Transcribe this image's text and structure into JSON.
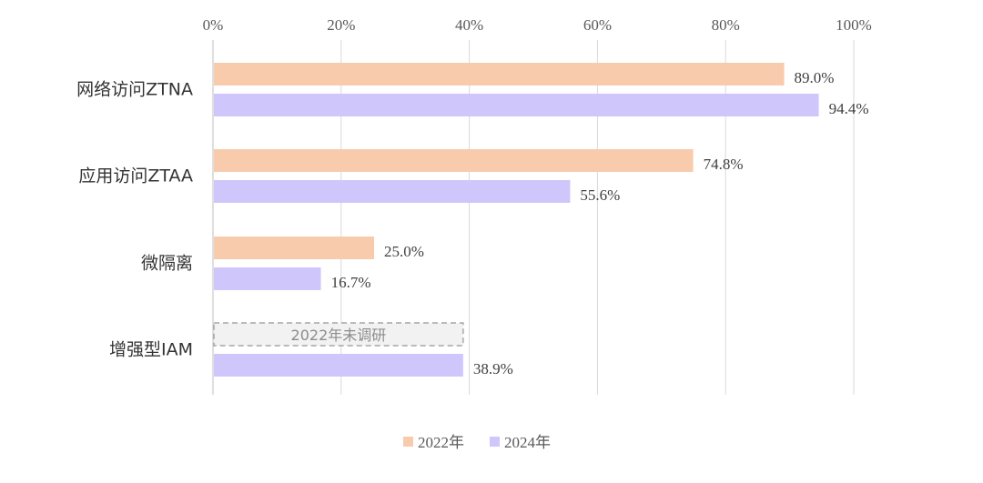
{
  "chart_data": {
    "type": "bar",
    "orientation": "horizontal",
    "categories": [
      "网络访问ZTNA",
      "应用访问ZTAA",
      "微隔离",
      "增强型IAM"
    ],
    "series": [
      {
        "name": "2022年",
        "values": [
          89.0,
          74.8,
          25.0,
          null
        ],
        "labels": [
          "89.0%",
          "74.8%",
          "25.0%",
          null
        ],
        "color": "#F8CBAD"
      },
      {
        "name": "2024年",
        "values": [
          94.4,
          55.6,
          16.7,
          38.9
        ],
        "labels": [
          "94.4%",
          "55.6%",
          "16.7%",
          "38.9%"
        ],
        "color": "#CFC7FB"
      }
    ],
    "x_ticks": [
      "0%",
      "20%",
      "40%",
      "60%",
      "80%",
      "100%"
    ],
    "xlim": [
      0,
      100
    ],
    "x_axis_position": "top",
    "grid": true,
    "legend": "bottom",
    "annotation": "2022年未调研"
  }
}
